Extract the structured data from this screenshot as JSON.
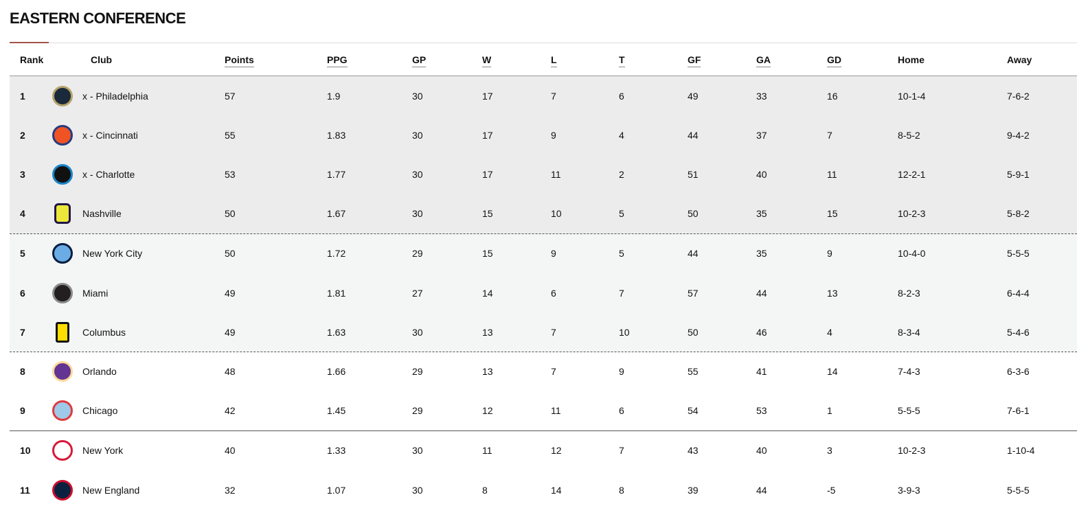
{
  "title": "EASTERN CONFERENCE",
  "columns": [
    "Rank",
    "Club",
    "Points",
    "PPG",
    "GP",
    "W",
    "L",
    "T",
    "GF",
    "GA",
    "GD",
    "Home",
    "Away"
  ],
  "rows": [
    {
      "rank": "1",
      "club": "x - Philadelphia",
      "logo": "philadelphia-union-crest",
      "colors": [
        "#1b2a3a",
        "#b5a46c"
      ],
      "points": "57",
      "ppg": "1.9",
      "gp": "30",
      "w": "17",
      "l": "7",
      "t": "6",
      "gf": "49",
      "ga": "33",
      "gd": "16",
      "home": "10-1-4",
      "away": "7-6-2"
    },
    {
      "rank": "2",
      "club": "x - Cincinnati",
      "logo": "fc-cincinnati-crest",
      "colors": [
        "#f05323",
        "#263b80"
      ],
      "points": "55",
      "ppg": "1.83",
      "gp": "30",
      "w": "17",
      "l": "9",
      "t": "4",
      "gf": "44",
      "ga": "37",
      "gd": "7",
      "home": "8-5-2",
      "away": "9-4-2"
    },
    {
      "rank": "3",
      "club": "x - Charlotte",
      "logo": "charlotte-fc-crest",
      "colors": [
        "#111111",
        "#1a85c8"
      ],
      "points": "53",
      "ppg": "1.77",
      "gp": "30",
      "w": "17",
      "l": "11",
      "t": "2",
      "gf": "51",
      "ga": "40",
      "gd": "11",
      "home": "12-2-1",
      "away": "5-9-1"
    },
    {
      "rank": "4",
      "club": "Nashville",
      "logo": "nashville-sc-crest",
      "colors": [
        "#ece83a",
        "#1f1646"
      ],
      "points": "50",
      "ppg": "1.67",
      "gp": "30",
      "w": "15",
      "l": "10",
      "t": "5",
      "gf": "50",
      "ga": "35",
      "gd": "15",
      "home": "10-2-3",
      "away": "5-8-2"
    },
    {
      "rank": "5",
      "club": "New York City",
      "logo": "nycfc-crest",
      "colors": [
        "#6cace4",
        "#041e42"
      ],
      "points": "50",
      "ppg": "1.72",
      "gp": "29",
      "w": "15",
      "l": "9",
      "t": "5",
      "gf": "44",
      "ga": "35",
      "gd": "9",
      "home": "10-4-0",
      "away": "5-5-5"
    },
    {
      "rank": "6",
      "club": "Miami",
      "logo": "inter-miami-crest",
      "colors": [
        "#231f20",
        "#8a8a8a"
      ],
      "points": "49",
      "ppg": "1.81",
      "gp": "27",
      "w": "14",
      "l": "6",
      "t": "7",
      "gf": "57",
      "ga": "44",
      "gd": "13",
      "home": "8-2-3",
      "away": "6-4-4"
    },
    {
      "rank": "7",
      "club": "Columbus",
      "logo": "columbus-crew-crest",
      "colors": [
        "#fedd00",
        "#111111"
      ],
      "points": "49",
      "ppg": "1.63",
      "gp": "30",
      "w": "13",
      "l": "7",
      "t": "10",
      "gf": "50",
      "ga": "46",
      "gd": "4",
      "home": "8-3-4",
      "away": "5-4-6"
    },
    {
      "rank": "8",
      "club": "Orlando",
      "logo": "orlando-city-crest",
      "colors": [
        "#633492",
        "#fdd99b"
      ],
      "points": "48",
      "ppg": "1.66",
      "gp": "29",
      "w": "13",
      "l": "7",
      "t": "9",
      "gf": "55",
      "ga": "41",
      "gd": "14",
      "home": "7-4-3",
      "away": "6-3-6"
    },
    {
      "rank": "9",
      "club": "Chicago",
      "logo": "chicago-fire-crest",
      "colors": [
        "#9ec9e8",
        "#e03a3e"
      ],
      "points": "42",
      "ppg": "1.45",
      "gp": "29",
      "w": "12",
      "l": "11",
      "t": "6",
      "gf": "54",
      "ga": "53",
      "gd": "1",
      "home": "5-5-5",
      "away": "7-6-1"
    },
    {
      "rank": "10",
      "club": "New York",
      "logo": "ny-red-bulls-crest",
      "colors": [
        "#ffffff",
        "#d71938"
      ],
      "points": "40",
      "ppg": "1.33",
      "gp": "30",
      "w": "11",
      "l": "12",
      "t": "7",
      "gf": "43",
      "ga": "40",
      "gd": "3",
      "home": "10-2-3",
      "away": "1-10-4"
    },
    {
      "rank": "11",
      "club": "New England",
      "logo": "new-england-revolution-crest",
      "colors": [
        "#0a2240",
        "#ce0e2d"
      ],
      "points": "32",
      "ppg": "1.07",
      "gp": "30",
      "w": "8",
      "l": "14",
      "t": "8",
      "gf": "39",
      "ga": "44",
      "gd": "-5",
      "home": "3-9-3",
      "away": "5-5-5"
    }
  ]
}
